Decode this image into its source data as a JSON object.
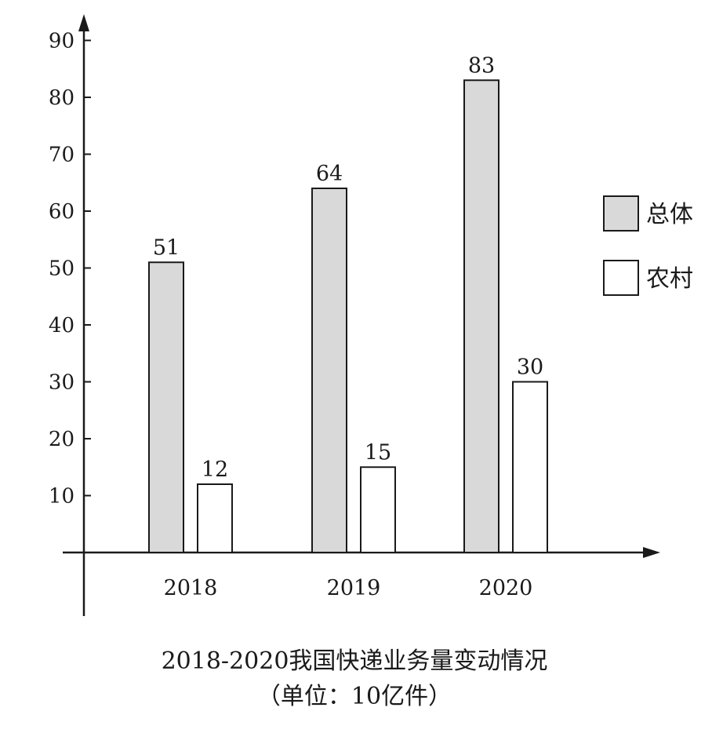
{
  "colors": {
    "total": "#d9d9d9",
    "rural": "#ffffff",
    "stroke": "#1a1a1a"
  },
  "chart_data": {
    "type": "bar",
    "categories": [
      "2018",
      "2019",
      "2020"
    ],
    "series": [
      {
        "name": "总体",
        "values": [
          51,
          64,
          83
        ]
      },
      {
        "name": "农村",
        "values": [
          12,
          15,
          30
        ]
      }
    ],
    "title": "2018-2020我国快递业务量变动情况",
    "subtitle": "（单位：10亿件）",
    "xlabel": "",
    "ylabel": "",
    "ylim": [
      0,
      90
    ],
    "yticks": [
      10,
      20,
      30,
      40,
      50,
      60,
      70,
      80,
      90
    ],
    "grid": false,
    "legend": "right"
  }
}
